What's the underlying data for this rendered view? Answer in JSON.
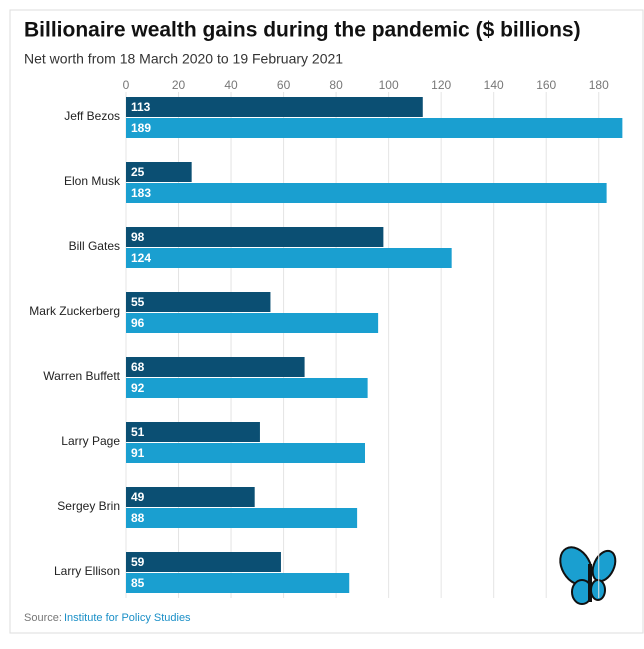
{
  "chart_data": {
    "type": "bar",
    "orientation": "horizontal",
    "title": "Billionaire wealth gains during the pandemic ($ billions)",
    "subtitle": "Net worth from 18 March 2020 to 19 February 2021",
    "categories": [
      "Jeff Bezos",
      "Elon Musk",
      "Bill Gates",
      "Mark Zuckerberg",
      "Warren Buffett",
      "Larry Page",
      "Sergey Brin",
      "Larry Ellison"
    ],
    "series": [
      {
        "color": "#0b4f73",
        "values": [
          113,
          25,
          98,
          55,
          68,
          51,
          49,
          59
        ]
      },
      {
        "color": "#1a9fd0",
        "values": [
          189,
          183,
          124,
          96,
          92,
          91,
          88,
          85
        ]
      }
    ],
    "xlim": [
      0,
      190
    ],
    "xticks": [
      0,
      20,
      40,
      60,
      80,
      100,
      120,
      140,
      160,
      180
    ],
    "grid": true,
    "source_label": "Source:",
    "source": "Institute for Policy Studies"
  }
}
